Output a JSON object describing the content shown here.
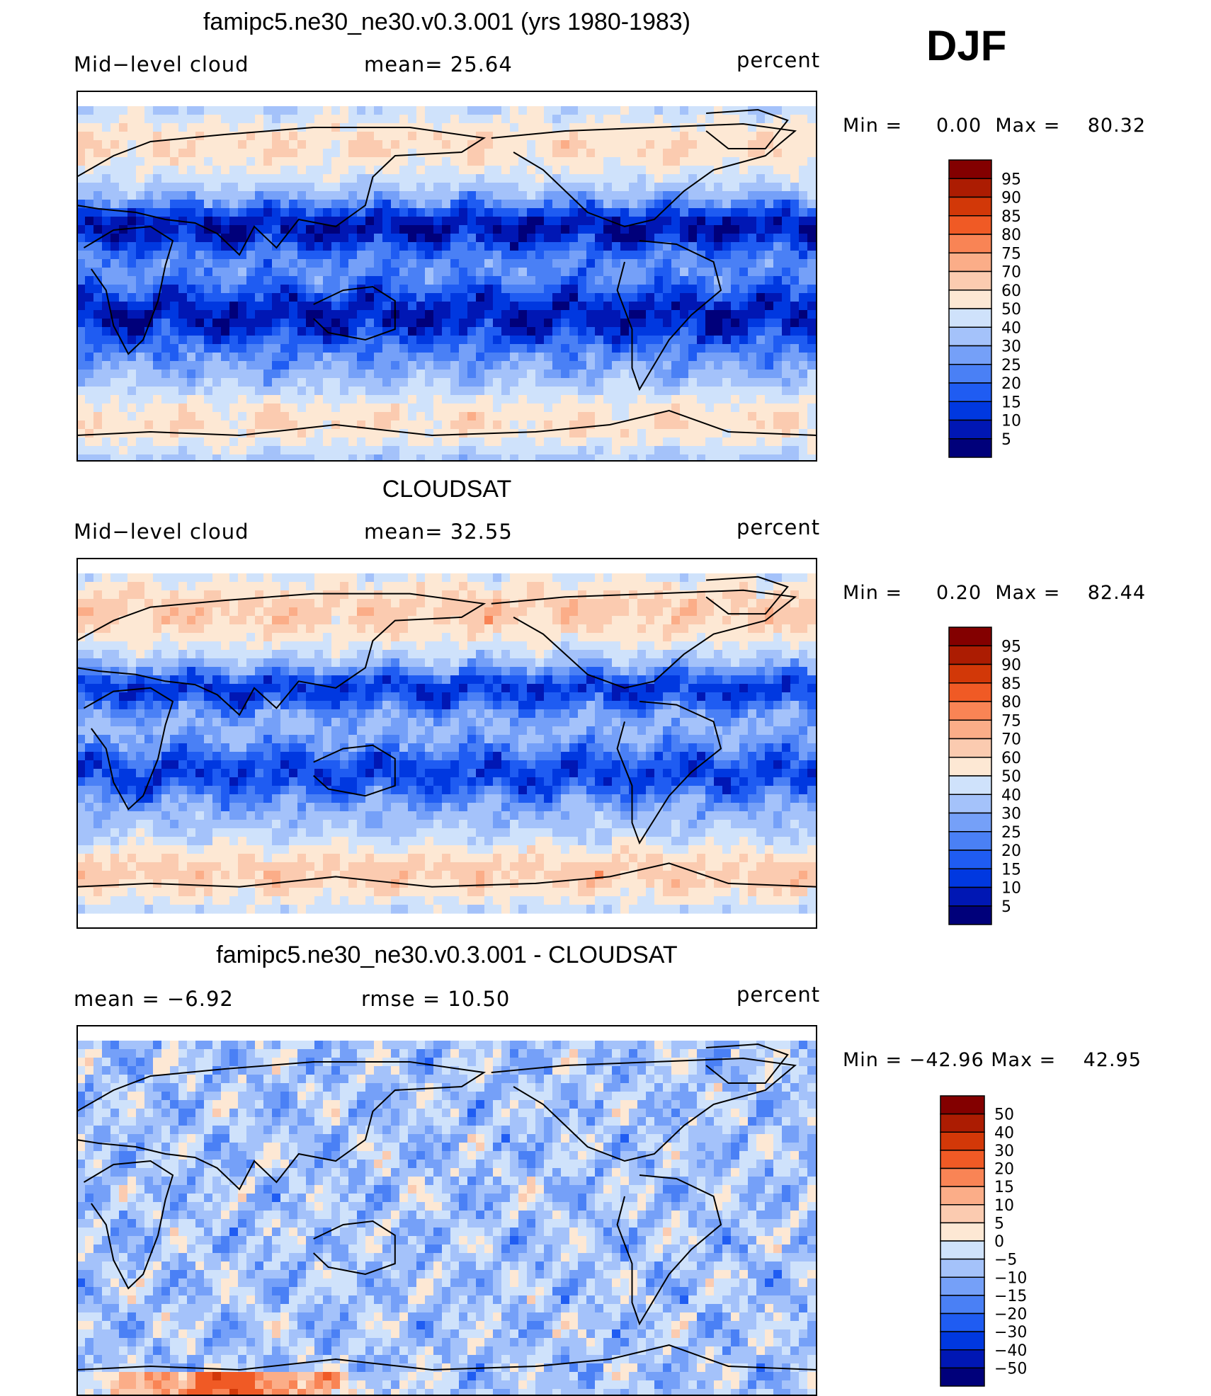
{
  "season": "DJF",
  "panels": [
    {
      "title": "famipc5.ne30_ne30.v0.3.001 (yrs 1980-1983)",
      "left_text": "Mid−level  cloud",
      "center_text": "mean=   25.64",
      "units": "percent",
      "min_label": "Min  =",
      "min_value": "0.00",
      "max_label": "Max  =",
      "max_value": "80.32",
      "kind": "model"
    },
    {
      "title": "CLOUDSAT",
      "left_text": "Mid−level  cloud",
      "center_text": "mean=   32.55",
      "units": "percent",
      "min_label": "Min  =",
      "min_value": "0.20",
      "max_label": "Max  =",
      "max_value": "82.44",
      "kind": "obs"
    },
    {
      "title": "famipc5.ne30_ne30.v0.3.001 - CLOUDSAT",
      "left_text": "mean  =    −6.92",
      "center_text": "rmse  =    10.50",
      "units": "percent",
      "min_label": "Min  =",
      "min_value": "−42.96",
      "max_label": "Max  =",
      "max_value": "42.95",
      "kind": "diff"
    }
  ],
  "chart_data": [
    {
      "type": "heatmap",
      "title": "famipc5.ne30_ne30.v0.3.001 (yrs 1980-1983)",
      "variable": "Mid-level cloud",
      "units": "percent",
      "mean": 25.64,
      "min": 0.0,
      "max": 80.32,
      "colorbar_levels": [
        5,
        10,
        15,
        20,
        25,
        30,
        40,
        50,
        60,
        70,
        75,
        80,
        85,
        90,
        95
      ],
      "colors": [
        "#00007a",
        "#0017b4",
        "#0038e0",
        "#1f5cf2",
        "#4a80f5",
        "#75a0f8",
        "#a4c2fa",
        "#cfe2fb",
        "#fde8d4",
        "#fbcbb0",
        "#fbad88",
        "#f98455",
        "#f05a25",
        "#d23808",
        "#ac1c02",
        "#830000"
      ]
    },
    {
      "type": "heatmap",
      "title": "CLOUDSAT",
      "variable": "Mid-level cloud",
      "units": "percent",
      "mean": 32.55,
      "min": 0.2,
      "max": 82.44,
      "colorbar_levels": [
        5,
        10,
        15,
        20,
        25,
        30,
        40,
        50,
        60,
        70,
        75,
        80,
        85,
        90,
        95
      ],
      "colors": [
        "#00007a",
        "#0017b4",
        "#0038e0",
        "#1f5cf2",
        "#4a80f5",
        "#75a0f8",
        "#a4c2fa",
        "#cfe2fb",
        "#fde8d4",
        "#fbcbb0",
        "#fbad88",
        "#f98455",
        "#f05a25",
        "#d23808",
        "#ac1c02",
        "#830000"
      ]
    },
    {
      "type": "heatmap",
      "title": "famipc5.ne30_ne30.v0.3.001 - CLOUDSAT",
      "units": "percent",
      "mean": -6.92,
      "rmse": 10.5,
      "min": -42.96,
      "max": 42.95,
      "colorbar_levels": [
        "−50",
        "−40",
        "−30",
        "−20",
        "−15",
        "−10",
        "−5",
        "0",
        "5",
        "10",
        "15",
        "20",
        "30",
        "40",
        "50"
      ],
      "colors": [
        "#00007a",
        "#0017b4",
        "#0038e0",
        "#1f5cf2",
        "#4a80f5",
        "#75a0f8",
        "#a4c2fa",
        "#cfe2fb",
        "#fde8d4",
        "#fbcbb0",
        "#fbad88",
        "#f98455",
        "#f05a25",
        "#d23808",
        "#ac1c02",
        "#830000"
      ]
    }
  ]
}
